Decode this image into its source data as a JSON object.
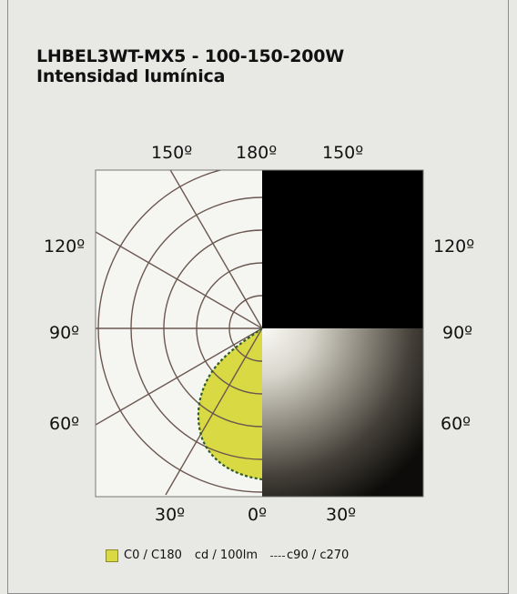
{
  "title": {
    "line1": "LHBEL3WT-MX5 - 100-150-200W",
    "line2": "Intensidad lumínica"
  },
  "angle_labels": {
    "top_left": "150º",
    "top_center": "180º",
    "top_right": "150º",
    "left_120": "120º",
    "right_120": "120º",
    "left_90": "90º",
    "right_90": "90º",
    "left_60": "60º",
    "right_60": "60º",
    "bottom_left": "30º",
    "bottom_center": "0º",
    "bottom_right": "30º"
  },
  "legend": {
    "c0_label": "C0 / C180",
    "units_label": "cd / 100lm",
    "c90_label": "c90 / c270"
  },
  "colors": {
    "curve_fill": "#d9d943",
    "curve_outline": "#2f5a2a",
    "grid_lines": "#6b5750",
    "dark_panel": "#000000",
    "light_glow": "#f6f5ef"
  }
}
